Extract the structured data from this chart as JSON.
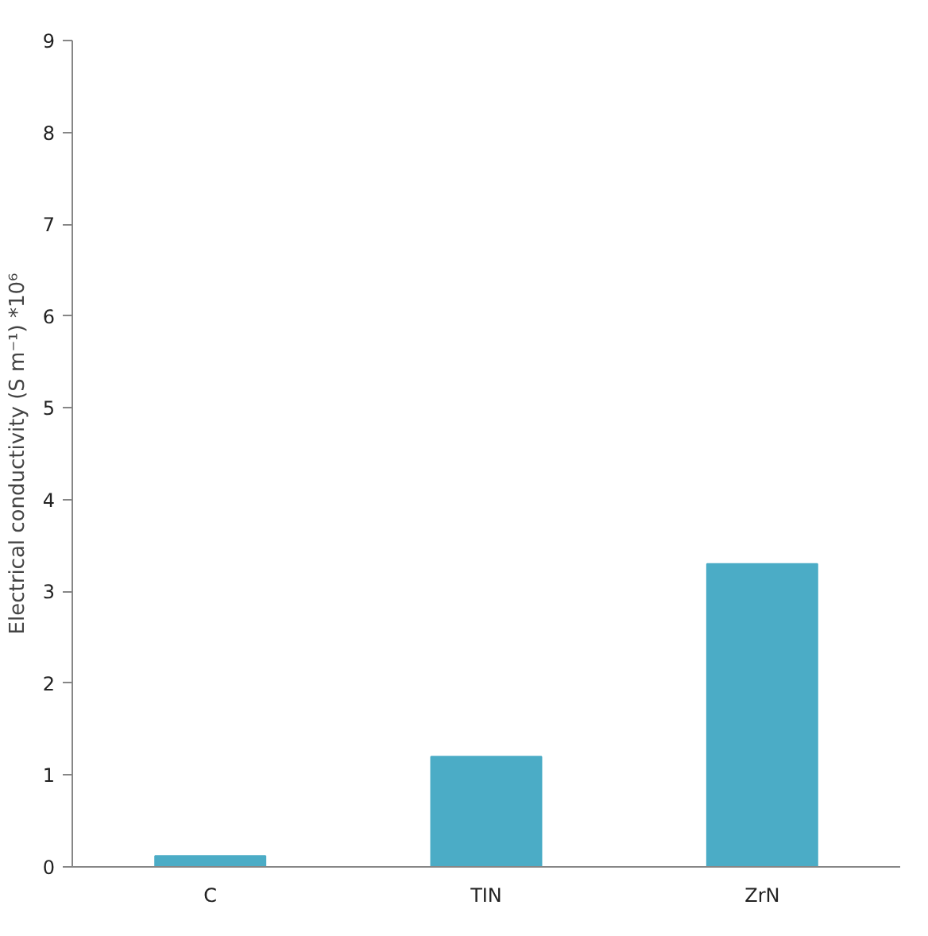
{
  "chart_data": {
    "type": "bar",
    "ylabel": "Electrical conductivity (S m⁻¹) *10⁶",
    "categories": [
      "C",
      "TIN",
      "ZrN"
    ],
    "values": [
      0.12,
      1.2,
      3.3
    ],
    "color": "#4bacc6",
    "ylim": [
      0,
      9
    ],
    "yticks": [
      0,
      1,
      2,
      3,
      4,
      5,
      6,
      7,
      8,
      9
    ],
    "grid": false
  }
}
